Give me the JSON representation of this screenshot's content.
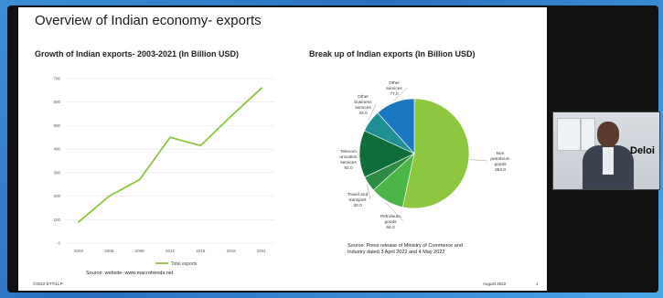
{
  "slide": {
    "title": "Overview of Indian economy- exports",
    "footer_left": "©2022 DTTILLP",
    "footer_date": "August 2022",
    "page_number": "1"
  },
  "camera": {
    "brand": "Deloi"
  },
  "chart_data": [
    {
      "type": "line",
      "title": "Growth of Indian exports- 2003-2021 (In Billion USD)",
      "categories": [
        "2003",
        "2006",
        "2009",
        "2012",
        "2015",
        "2018",
        "2021"
      ],
      "series": [
        {
          "name": "Total exports",
          "values": [
            90,
            200,
            270,
            450,
            415,
            540,
            660
          ]
        }
      ],
      "y_ticks": [
        "0",
        "100",
        "200",
        "300",
        "400",
        "500",
        "600",
        "700"
      ],
      "ylim": [
        0,
        700
      ],
      "color": "#8dc63f",
      "legend": "bottom",
      "source": "Source: website- www.macrotrends.net"
    },
    {
      "type": "pie",
      "title": "Break up of Indian exports (In Billion USD)",
      "slices": [
        {
          "name": "Non petroleum goods",
          "value": 353.0,
          "color": "#8dc63f",
          "label": [
            "Non",
            "petroleum",
            "goods",
            "353.0"
          ]
        },
        {
          "name": "Petroleum goods",
          "value": 66.0,
          "color": "#4cb548",
          "label": [
            "Petroleum",
            "goods",
            "66.0"
          ]
        },
        {
          "name": "Travel and transport",
          "value": 30.0,
          "color": "#2e8b43",
          "label": [
            "Travel and",
            "transport",
            "30.0"
          ]
        },
        {
          "name": "Telecommunication services",
          "value": 92.0,
          "color": "#0f6d3a",
          "label": [
            "Telecom",
            "unication",
            "services",
            "92.0"
          ]
        },
        {
          "name": "Other business services",
          "value": 43.0,
          "color": "#1f8f96",
          "label": [
            "Other",
            "business",
            "services",
            "43.0"
          ]
        },
        {
          "name": "Other services",
          "value": 77.0,
          "color": "#1a78c2",
          "label": [
            "Other",
            "services",
            "77.0"
          ]
        }
      ],
      "source": [
        "Source: Press release of Ministry of Commerce and",
        "Industry dated 3 April 2022 and 4 May 2022"
      ]
    }
  ]
}
